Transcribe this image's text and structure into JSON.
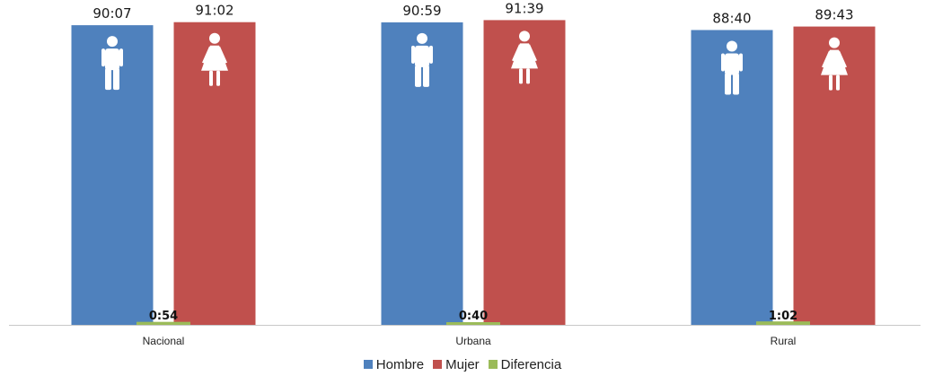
{
  "chart_data": {
    "type": "bar",
    "categories": [
      "Nacional",
      "Urbana",
      "Rural"
    ],
    "value_format": "h:mm",
    "ylim": [
      0,
      95
    ],
    "grid": false,
    "legend_position": "bottom-center",
    "series": [
      {
        "name": "Hombre",
        "color": "#4f81bd",
        "icon": "man-icon",
        "values": [
          90.1167,
          90.9833,
          88.6667
        ],
        "labels": [
          "90:07",
          "90:59",
          "88:40"
        ]
      },
      {
        "name": "Mujer",
        "color": "#c0504d",
        "icon": "woman-icon",
        "values": [
          91.0333,
          91.65,
          89.7167
        ],
        "labels": [
          "91:02",
          "91:39",
          "89:43"
        ]
      },
      {
        "name": "Diferencia",
        "color": "#9bbb59",
        "values": [
          0.9,
          0.6667,
          1.0333
        ],
        "labels": [
          "0:54",
          "0:40",
          "1:02"
        ]
      }
    ]
  }
}
